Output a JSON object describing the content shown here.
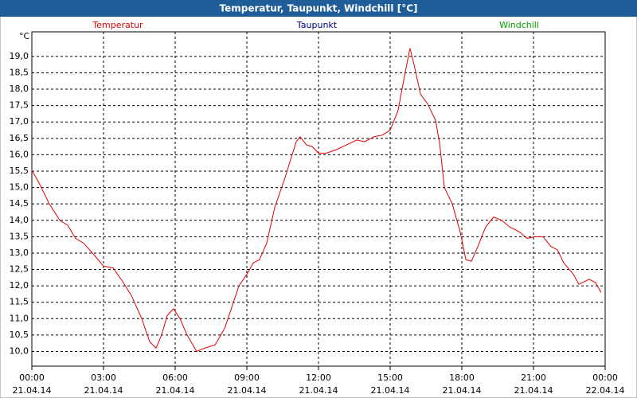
{
  "chart_data": {
    "type": "line",
    "title": "Temperatur, Taupunkt, Windchill [°C]",
    "y_unit": "°C",
    "x": [
      0,
      0.33,
      0.73,
      1.17,
      1.5,
      1.83,
      2.17,
      2.6,
      3.0,
      3.4,
      3.83,
      4.17,
      4.6,
      4.93,
      5.2,
      5.43,
      5.67,
      5.93,
      6.2,
      6.5,
      6.9,
      7.23,
      7.67,
      8.07,
      8.67,
      9.0,
      9.27,
      9.53,
      9.83,
      10.17,
      10.6,
      10.83,
      11.07,
      11.23,
      11.5,
      11.73,
      12.0,
      12.33,
      12.73,
      13.17,
      13.6,
      13.93,
      14.33,
      14.67,
      15.0,
      15.33,
      15.6,
      15.83,
      16.0,
      16.27,
      16.57,
      16.9,
      17.07,
      17.27,
      17.6,
      17.93,
      18.17,
      18.4,
      18.67,
      19.0,
      19.33,
      19.67,
      20.0,
      20.4,
      20.73,
      21.07,
      21.4,
      21.73,
      22.0,
      22.27,
      22.67,
      22.9,
      23.33,
      23.6,
      23.83
    ],
    "series": [
      {
        "name": "Temperatur",
        "color": "#e00000",
        "values": [
          15.53,
          15.1,
          14.5,
          14.0,
          13.85,
          13.45,
          13.3,
          12.95,
          12.6,
          12.55,
          12.1,
          11.7,
          11.0,
          10.3,
          10.1,
          10.5,
          11.1,
          11.3,
          11.0,
          10.5,
          10.0,
          10.1,
          10.2,
          10.7,
          12.0,
          12.35,
          12.7,
          12.8,
          13.3,
          14.4,
          15.3,
          15.85,
          16.4,
          16.55,
          16.3,
          16.25,
          16.05,
          16.05,
          16.15,
          16.3,
          16.45,
          16.4,
          16.55,
          16.6,
          16.75,
          17.35,
          18.4,
          19.25,
          18.75,
          17.85,
          17.55,
          17.05,
          16.35,
          15.0,
          14.5,
          13.65,
          12.8,
          12.75,
          13.2,
          13.8,
          14.1,
          14.0,
          13.8,
          13.65,
          13.45,
          13.5,
          13.5,
          13.2,
          13.1,
          12.7,
          12.35,
          12.05,
          12.2,
          12.1,
          11.8
        ]
      },
      {
        "name": "Taupunkt",
        "color": "#000080",
        "values": [
          null,
          null,
          null,
          null,
          null,
          null,
          null,
          null,
          null,
          null,
          null,
          null,
          null,
          null,
          null,
          null,
          null,
          null,
          null,
          null,
          null,
          null,
          null,
          null,
          null,
          null,
          null,
          null,
          null,
          null,
          null,
          null,
          null,
          null,
          null,
          null,
          null,
          null,
          null,
          null,
          null,
          null,
          null,
          null,
          null,
          null,
          null,
          null,
          null,
          null,
          null,
          null,
          null,
          null,
          null,
          null,
          null,
          null,
          null,
          null,
          null,
          null,
          null,
          null,
          null,
          null,
          null,
          null,
          null,
          null,
          null,
          null,
          null,
          null,
          null
        ]
      },
      {
        "name": "Windchill",
        "color": "#00a000",
        "values": [
          null,
          null,
          null,
          null,
          null,
          null,
          null,
          null,
          null,
          null,
          null,
          null,
          null,
          null,
          null,
          null,
          null,
          null,
          null,
          null,
          null,
          null,
          null,
          null,
          null,
          null,
          null,
          null,
          null,
          null,
          null,
          null,
          null,
          null,
          null,
          null,
          null,
          null,
          null,
          null,
          null,
          null,
          null,
          null,
          null,
          null,
          null,
          null,
          null,
          null,
          null,
          null,
          null,
          null,
          null,
          null,
          null,
          null,
          null,
          null,
          null,
          null,
          null,
          null,
          null,
          null,
          null,
          null,
          null,
          null,
          null,
          null,
          null,
          null,
          null
        ]
      }
    ],
    "xlim": [
      0,
      24
    ],
    "xticks": [
      {
        "value": 0,
        "label": "00:00",
        "sublabel": "21.04.14"
      },
      {
        "value": 3,
        "label": "03:00",
        "sublabel": "21.04.14"
      },
      {
        "value": 6,
        "label": "06:00",
        "sublabel": "21.04.14"
      },
      {
        "value": 9,
        "label": "09:00",
        "sublabel": "21.04.14"
      },
      {
        "value": 12,
        "label": "12:00",
        "sublabel": "21.04.14"
      },
      {
        "value": 15,
        "label": "15:00",
        "sublabel": "21.04.14"
      },
      {
        "value": 18,
        "label": "18:00",
        "sublabel": "21.04.14"
      },
      {
        "value": 21,
        "label": "21:00",
        "sublabel": "21.04.14"
      },
      {
        "value": 24,
        "label": "00:00",
        "sublabel": "22.04.14"
      }
    ],
    "ylim": [
      9.55,
      19.75
    ],
    "yticks": [
      {
        "value": 10,
        "label": "10,0"
      },
      {
        "value": 10.5,
        "label": "10,5"
      },
      {
        "value": 11,
        "label": "11,0"
      },
      {
        "value": 11.5,
        "label": "11,5"
      },
      {
        "value": 12,
        "label": "12,0"
      },
      {
        "value": 12.5,
        "label": "12,5"
      },
      {
        "value": 13,
        "label": "13,0"
      },
      {
        "value": 13.5,
        "label": "13,5"
      },
      {
        "value": 14,
        "label": "14,0"
      },
      {
        "value": 14.5,
        "label": "14,5"
      },
      {
        "value": 15,
        "label": "15,0"
      },
      {
        "value": 15.5,
        "label": "15,5"
      },
      {
        "value": 16,
        "label": "16,0"
      },
      {
        "value": 16.5,
        "label": "16,5"
      },
      {
        "value": 17,
        "label": "17,0"
      },
      {
        "value": 17.5,
        "label": "17,5"
      },
      {
        "value": 18,
        "label": "18,0"
      },
      {
        "value": 18.5,
        "label": "18,5"
      },
      {
        "value": 19,
        "label": "19,0"
      }
    ],
    "grid": true
  }
}
